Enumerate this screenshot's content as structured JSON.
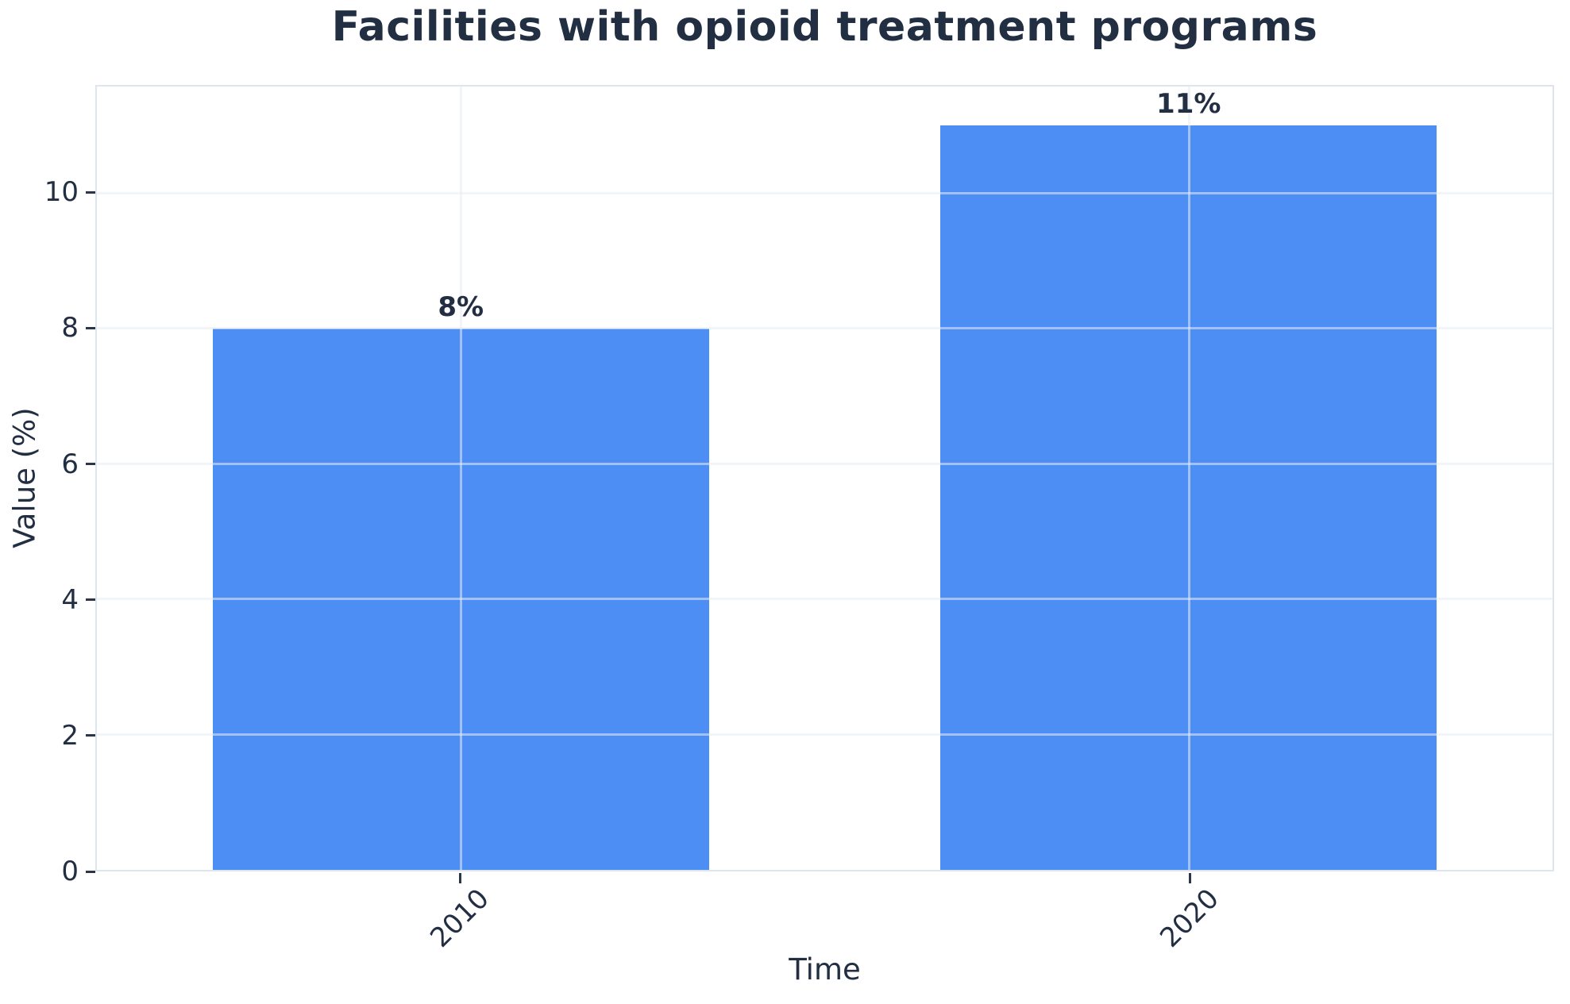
{
  "chart_data": {
    "type": "bar",
    "title": "Facilities with opioid treatment programs",
    "xlabel": "Time",
    "ylabel": "Value (%)",
    "categories": [
      "2010",
      "2020"
    ],
    "values": [
      8,
      11
    ],
    "value_labels": [
      "8%",
      "11%"
    ],
    "yticks": [
      0,
      2,
      4,
      6,
      8,
      10
    ],
    "ylim": [
      0,
      11.58
    ],
    "grid": true,
    "legend": false,
    "colors": {
      "bar": "#4c8ef3",
      "text": "#222e42",
      "tick": "#2b3749",
      "frame": "#dfe5ee",
      "grid": "#e7ecf3"
    }
  }
}
